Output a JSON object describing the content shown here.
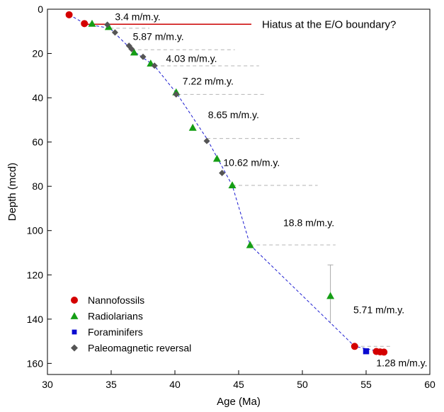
{
  "chart_data": {
    "type": "scatter",
    "title": "",
    "xlabel": "Age (Ma)",
    "ylabel": "Depth (mcd)",
    "xlim": [
      30,
      60
    ],
    "ylim": [
      0,
      165
    ],
    "y_inverted": true,
    "xticks": [
      30,
      35,
      40,
      45,
      50,
      55,
      60
    ],
    "yticks": [
      0,
      20,
      40,
      60,
      80,
      100,
      120,
      140,
      160
    ],
    "grid": false,
    "legend_position": "bottom-left",
    "series": [
      {
        "name": "Nannofossils",
        "marker": "circle",
        "color": "#d40000",
        "points": [
          {
            "x": 31.7,
            "y": 2.5
          },
          {
            "x": 32.9,
            "y": 6.5
          },
          {
            "x": 54.1,
            "y": 152.3
          },
          {
            "x": 55.8,
            "y": 154.6
          },
          {
            "x": 56.1,
            "y": 154.8
          },
          {
            "x": 56.4,
            "y": 154.9
          }
        ]
      },
      {
        "name": "Radiolarians",
        "marker": "triangle",
        "color": "#159e15",
        "points": [
          {
            "x": 33.5,
            "y": 6.5
          },
          {
            "x": 34.8,
            "y": 8
          },
          {
            "x": 36.8,
            "y": 19.5
          },
          {
            "x": 38.1,
            "y": 24.5
          },
          {
            "x": 40.1,
            "y": 37.5
          },
          {
            "x": 41.4,
            "y": 53.5
          },
          {
            "x": 43.3,
            "y": 67.5
          },
          {
            "x": 44.5,
            "y": 79.5
          },
          {
            "x": 45.9,
            "y": 106.5
          },
          {
            "x": 52.2,
            "y": 129.5
          }
        ]
      },
      {
        "name": "Foraminifers",
        "marker": "square",
        "color": "#0a0ad0",
        "points": [
          {
            "x": 55.0,
            "y": 154.5
          }
        ]
      },
      {
        "name": "Paleomagnetic reversal",
        "marker": "diamond",
        "color": "#555555",
        "points": [
          {
            "x": 34.7,
            "y": 7
          },
          {
            "x": 35.3,
            "y": 10.5
          },
          {
            "x": 36.4,
            "y": 16.5
          },
          {
            "x": 36.6,
            "y": 18
          },
          {
            "x": 37.5,
            "y": 21.5
          },
          {
            "x": 38.4,
            "y": 25.5
          },
          {
            "x": 40.1,
            "y": 38.5
          },
          {
            "x": 42.5,
            "y": 59.5
          },
          {
            "x": 43.7,
            "y": 74
          }
        ]
      }
    ],
    "age_depth_model": {
      "color": "#1a1ad0",
      "style": "dashed",
      "points": [
        {
          "x": 31.7,
          "y": 2.5
        },
        {
          "x": 33.0,
          "y": 6.7
        },
        {
          "x": 34.9,
          "y": 8.6
        },
        {
          "x": 36.6,
          "y": 18.3
        },
        {
          "x": 38.4,
          "y": 25.6
        },
        {
          "x": 40.2,
          "y": 38.5
        },
        {
          "x": 42.5,
          "y": 58.4
        },
        {
          "x": 44.5,
          "y": 79.6
        },
        {
          "x": 45.9,
          "y": 106.5
        },
        {
          "x": 54.1,
          "y": 152.3
        },
        {
          "x": 56.4,
          "y": 155
        }
      ]
    },
    "hiatus_line": {
      "color": "#cc0000",
      "x": [
        33.0,
        46.0
      ],
      "y": 6.8,
      "label": "Hiatus at the E/O boundary?"
    },
    "rate_boundaries": [
      {
        "y": 8.6,
        "x_start": 34.9,
        "x_end": 38.0
      },
      {
        "y": 18.3,
        "x_start": 36.6,
        "x_end": 44.7
      },
      {
        "y": 25.6,
        "x_start": 38.4,
        "x_end": 46.6
      },
      {
        "y": 38.5,
        "x_start": 40.2,
        "x_end": 47.0
      },
      {
        "y": 58.4,
        "x_start": 42.5,
        "x_end": 50.0
      },
      {
        "y": 79.6,
        "x_start": 44.5,
        "x_end": 51.2
      },
      {
        "y": 106.5,
        "x_start": 45.9,
        "x_end": 52.6
      },
      {
        "y": 152.3,
        "x_start": 54.1,
        "x_end": 57.0
      }
    ],
    "error_bar": {
      "x": 52.2,
      "y_low": 115.5,
      "y_high": 142,
      "color": "#aaaaaa"
    },
    "annotations": [
      {
        "text": "3.4 m/m.y.",
        "x": 35.3,
        "y": 3.3
      },
      {
        "text": "5.87  m/m.y.",
        "x": 36.7,
        "y": 12.3
      },
      {
        "text": "4.03 m/m.y.",
        "x": 39.3,
        "y": 22.2
      },
      {
        "text": "7.22 m/m.y.",
        "x": 40.6,
        "y": 32.4
      },
      {
        "text": "8.65 m/m.y.",
        "x": 42.6,
        "y": 47.7
      },
      {
        "text": "10.62 m/m.y.",
        "x": 43.8,
        "y": 69.3
      },
      {
        "text": "18.8 m/m.y.",
        "x": 48.5,
        "y": 96.4
      },
      {
        "text": "5.71 m/m.y.",
        "x": 54.0,
        "y": 135.8
      },
      {
        "text": "1.28 m/m.y.",
        "x": 55.8,
        "y": 159.8
      }
    ]
  }
}
